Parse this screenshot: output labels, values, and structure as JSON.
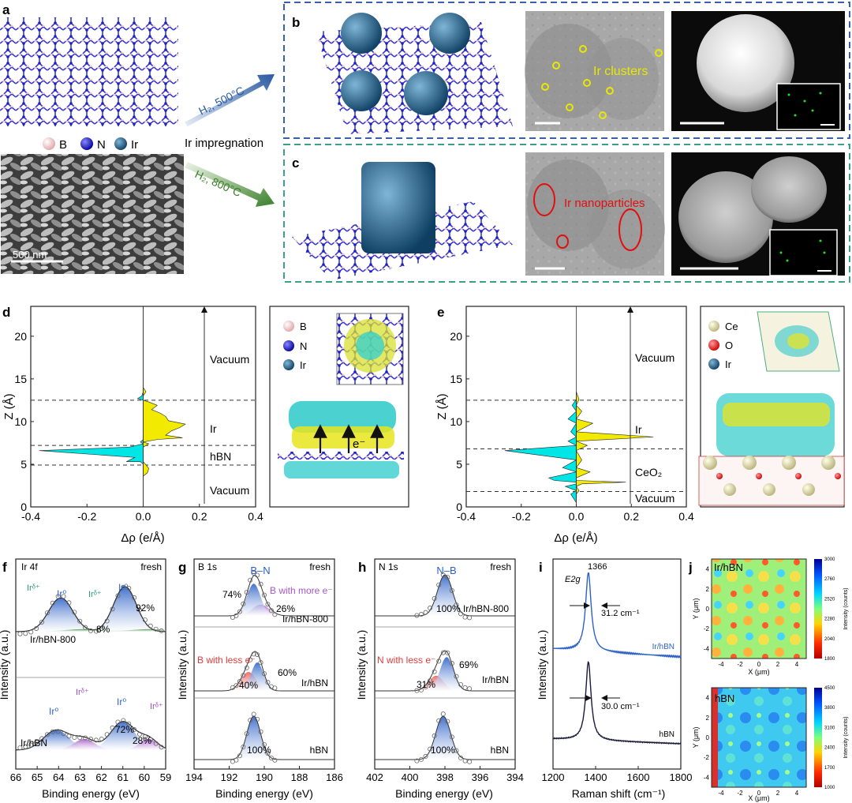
{
  "figure": {
    "panel_letters": [
      "a",
      "b",
      "c",
      "d",
      "e",
      "f",
      "g",
      "h",
      "i",
      "j"
    ],
    "panel_a": {
      "legend": [
        "B",
        "N",
        "Ir"
      ],
      "sem_scale_bar": "500 nm",
      "arrow_top_label": "H₂, 500°C",
      "arrow_bottom_label": "H₂, 800°C",
      "middle_label": "Ir impregnation"
    },
    "panel_b": {
      "tem_label": "Ir clusters"
    },
    "panel_c": {
      "tem_label": "Ir nanoparticles"
    },
    "panel_d": {
      "legend": [
        "B",
        "N",
        "Ir"
      ],
      "region_labels": [
        "Vacuum",
        "Ir",
        "hBN",
        "Vacuum"
      ],
      "electron_label": "e⁻"
    },
    "panel_e": {
      "legend": [
        "Ce",
        "O",
        "Ir"
      ],
      "region_labels": [
        "Vacuum",
        "Ir",
        "CeO₂",
        "Vacuum"
      ]
    },
    "panel_f": {
      "title": "Ir 4f",
      "state": "fresh",
      "top": {
        "sample": "Ir/hBN-800",
        "peak1": "Ir⁰",
        "peak2": "Ir⁰",
        "pct_main": "92%",
        "pct_minor": "8%",
        "delta1": "Irᵟ⁺",
        "delta2": "Irᵟ⁺"
      },
      "bottom": {
        "sample": "Ir/hBN",
        "peak1": "Ir⁰",
        "peak2": "Ir⁰",
        "pct_main": "72%",
        "pct_minor": "28%",
        "delta1": "Irᵟ⁺",
        "delta2": "Irᵟ⁺"
      }
    },
    "panel_g": {
      "title": "B 1s",
      "state": "fresh",
      "peak_label": "B–N",
      "top": {
        "sample": "Ir/hBN-800",
        "pct_main": "74%",
        "pct_minor": "26%",
        "annotation": "B with more e⁻"
      },
      "middle": {
        "sample": "Ir/hBN",
        "pct_main": "60%",
        "pct_minor": "40%",
        "annotation": "B with less e⁻"
      },
      "bottom": {
        "sample": "hBN",
        "pct_main": "100%"
      }
    },
    "panel_h": {
      "title": "N 1s",
      "state": "fresh",
      "peak_label": "N–B",
      "top": {
        "sample": "Ir/hBN-800",
        "pct_main": "100%"
      },
      "middle": {
        "sample": "Ir/hBN",
        "pct_main": "69%",
        "pct_minor": "31%",
        "annotation": "N with less e⁻"
      },
      "bottom": {
        "sample": "hBN",
        "pct_main": "100%"
      }
    },
    "panel_i": {
      "peak_pos": "1366",
      "mode": "E2g",
      "top_sample": "Ir/hBN",
      "top_fwhm": "31.2 cm⁻¹",
      "bottom_sample": "hBN",
      "bottom_fwhm": "30.0 cm⁻¹"
    },
    "panel_j": {
      "top_sample": "Ir/hBN",
      "bottom_sample": "hBN",
      "colorbar_label": "Intensity (counts)"
    }
  },
  "chart_data": [
    {
      "id": "d",
      "type": "line",
      "title": "",
      "xlabel": "Δρ (e/Å)",
      "ylabel": "Z (Å)",
      "xlim": [
        -0.4,
        0.4
      ],
      "ylim": [
        0,
        23.5
      ],
      "xticks": [
        -0.4,
        -0.2,
        0.0,
        0.2,
        0.4
      ],
      "yticks": [
        0,
        5,
        10,
        15,
        20
      ],
      "boundaries": [
        4.9,
        7.2,
        12.5
      ],
      "series": [
        {
          "name": "Δρ",
          "x": [
            0,
            0,
            0,
            0.015,
            0.02,
            0.008,
            -0.01,
            -0.03,
            -0.37,
            -0.05,
            0.02,
            -0.06,
            -0.01,
            0.05,
            0.08,
            0.1,
            0.13,
            0.15,
            0.14,
            0.09,
            0.08,
            0.06,
            0.03,
            0.05,
            0.02,
            0.0,
            -0.02,
            -0.005,
            0.01,
            0,
            0
          ],
          "y": [
            0,
            2.5,
            3.6,
            4.0,
            4.5,
            5.0,
            5.3,
            5.8,
            6.6,
            7.0,
            7.4,
            5.3,
            7.6,
            7.9,
            8.4,
            8.9,
            9.3,
            9.7,
            8.1,
            10.1,
            10.6,
            11.0,
            11.4,
            11.9,
            12.3,
            12.5,
            12.7,
            13.0,
            13.5,
            14,
            23.5
          ]
        }
      ]
    },
    {
      "id": "e",
      "type": "line",
      "title": "",
      "xlabel": "Δρ (e/Å)",
      "ylabel": "Z (Å)",
      "xlim": [
        -0.4,
        0.4
      ],
      "ylim": [
        0,
        23.5
      ],
      "xticks": [
        -0.4,
        -0.2,
        0.0,
        0.2,
        0.4
      ],
      "yticks": [
        0,
        5,
        10,
        15,
        20
      ],
      "boundaries": [
        1.8,
        6.8,
        12.5
      ],
      "series": [
        {
          "name": "Δρ",
          "x": [
            0,
            -0.02,
            0.01,
            -0.04,
            0.02,
            -0.08,
            0.18,
            -0.1,
            0.05,
            -0.05,
            0.02,
            -0.26,
            0.04,
            -0.03,
            0.28,
            -0.02,
            0.06,
            -0.03,
            0.02,
            -0.015,
            0.01,
            0
          ],
          "y": [
            0.5,
            1.5,
            1.9,
            2.4,
            2.7,
            3.1,
            2.9,
            3.4,
            4.1,
            4.6,
            5.5,
            6.6,
            7.2,
            7.7,
            8.2,
            8.8,
            9.8,
            10.3,
            11.2,
            11.9,
            12.6,
            13.5
          ]
        }
      ]
    },
    {
      "id": "f",
      "type": "line",
      "title": "Ir 4f",
      "xlabel": "Binding energy (eV)",
      "ylabel": "Intensity (a.u.)",
      "xlim": [
        66,
        59
      ],
      "xticks": [
        66,
        65,
        64,
        63,
        62,
        61,
        60,
        59
      ],
      "series": [
        {
          "name": "Ir/hBN-800 Ir0 4f7/2",
          "center": 60.9,
          "fraction": 0.92
        },
        {
          "name": "Ir/hBN-800 Ir0 4f5/2",
          "center": 63.9,
          "fraction": 0.92
        },
        {
          "name": "Ir/hBN Ir0 4f7/2",
          "center": 61.0,
          "fraction": 0.72
        },
        {
          "name": "Ir/hBN Ir0 4f5/2",
          "center": 64.1,
          "fraction": 0.72
        },
        {
          "name": "Ir/hBN Irδ+",
          "centers": [
            62.8,
            59.8
          ],
          "fraction": 0.28
        }
      ]
    },
    {
      "id": "g",
      "type": "line",
      "title": "B 1s",
      "xlabel": "Binding energy (eV)",
      "ylabel": "Intensity (a.u.)",
      "xlim": [
        194,
        186
      ],
      "xticks": [
        194,
        192,
        190,
        188,
        186
      ],
      "series": [
        {
          "name": "Ir/hBN-800 B–N",
          "center": 190.6,
          "fraction": 0.74
        },
        {
          "name": "Ir/hBN-800 B with more e-",
          "center": 190.2,
          "fraction": 0.26
        },
        {
          "name": "Ir/hBN B–N",
          "center": 190.4,
          "fraction": 0.6
        },
        {
          "name": "Ir/hBN B with less e-",
          "center": 190.9,
          "fraction": 0.4
        },
        {
          "name": "hBN B–N",
          "center": 190.6,
          "fraction": 1.0
        }
      ]
    },
    {
      "id": "h",
      "type": "line",
      "title": "N 1s",
      "xlabel": "Binding energy (eV)",
      "ylabel": "Intensity (a.u.)",
      "xlim": [
        402,
        394
      ],
      "xticks": [
        402,
        400,
        398,
        396,
        394
      ],
      "series": [
        {
          "name": "Ir/hBN-800 N–B",
          "center": 398.0,
          "fraction": 1.0
        },
        {
          "name": "Ir/hBN N–B",
          "center": 397.9,
          "fraction": 0.69
        },
        {
          "name": "Ir/hBN N with less e-",
          "center": 398.5,
          "fraction": 0.31
        },
        {
          "name": "hBN N–B",
          "center": 398.1,
          "fraction": 1.0
        }
      ]
    },
    {
      "id": "i",
      "type": "line",
      "title": "",
      "xlabel": "Raman shift (cm⁻¹)",
      "ylabel": "Intensity (a.u.)",
      "xlim": [
        1200,
        1800
      ],
      "xticks": [
        1200,
        1400,
        1600,
        1800
      ],
      "series": [
        {
          "name": "Ir/hBN",
          "peak": 1366,
          "fwhm": 31.2
        },
        {
          "name": "hBN",
          "peak": 1366,
          "fwhm": 30.0
        }
      ]
    },
    {
      "id": "j",
      "type": "heatmap",
      "title": "",
      "xlabel": "X (μm)",
      "ylabel": "Y (μm)",
      "xlim": [
        -5,
        5
      ],
      "ylim": [
        -5,
        5
      ],
      "xticks": [
        -4,
        -2,
        0,
        2,
        4
      ],
      "yticks": [
        -4,
        -2,
        0,
        2,
        4
      ],
      "maps": [
        {
          "name": "Ir/hBN",
          "colorbar_ticks": [
            1800,
            2040,
            2280,
            2520,
            2760,
            3000
          ]
        },
        {
          "name": "hBN",
          "colorbar_ticks": [
            1000,
            1700,
            2400,
            3100,
            3800,
            4500
          ]
        }
      ]
    }
  ]
}
